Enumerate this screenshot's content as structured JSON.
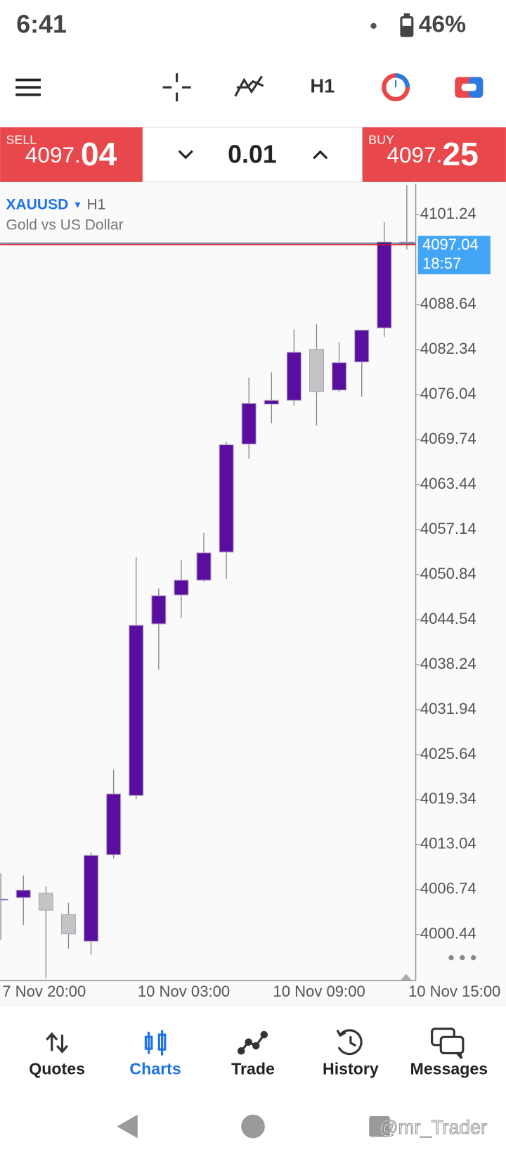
{
  "status_bar": {
    "time": "6:41",
    "battery": "46%"
  },
  "toolbar": {
    "timeframe": "H1"
  },
  "trade_panel": {
    "sell_label": "SELL",
    "sell_price": "4097.",
    "sell_price_pips": "04",
    "lot": "0.01",
    "buy_label": "BUY",
    "buy_price": "4097.",
    "buy_price_pips": "25"
  },
  "chart_data": {
    "type": "candlestick",
    "symbol": "XAUUSD",
    "timeframe": "H1",
    "description": "Gold vs US Dollar",
    "categories": [
      "7 Nov 20:00",
      null,
      null,
      null,
      null,
      null,
      "10 Nov 03:00",
      null,
      null,
      null,
      null,
      null,
      "10 Nov 09:00",
      null,
      null,
      null,
      null,
      null,
      "10 Nov 15:00"
    ],
    "open": [
      4005.42,
      4005.62,
      4006.24,
      4003.24,
      3999.51,
      4011.63,
      4019.92,
      4043.95,
      4047.99,
      4050.06,
      4054.0,
      4069.13,
      4074.72,
      4075.24,
      4082.39,
      4076.69,
      4080.62,
      4085.39,
      4097.41
    ],
    "high": [
      4009.04,
      4008.73,
      4007.18,
      4004.9,
      4011.94,
      4023.54,
      4053.28,
      4048.92,
      4052.86,
      4056.69,
      4069.44,
      4078.45,
      4079.17,
      4085.18,
      4085.91,
      4083.42,
      4085.08,
      4100.2,
      4105.38
    ],
    "low": [
      3999.72,
      4001.79,
      3994.3,
      3998.47,
      3997.64,
      4011.11,
      4019.4,
      4037.53,
      4044.78,
      4049.86,
      4050.27,
      4067.05,
      4072.03,
      4074.51,
      4071.72,
      4076.38,
      4075.76,
      4084.15,
      4096.37
    ],
    "close": [
      4005.42,
      4006.66,
      4003.86,
      4000.55,
      4011.53,
      4020.13,
      4043.74,
      4047.89,
      4050.06,
      4053.9,
      4069.02,
      4074.82,
      4075.24,
      4081.97,
      4076.48,
      4080.52,
      4085.08,
      4097.41,
      4097.04
    ],
    "up_color": "#5a0ea0",
    "down_color": "#c4c4c4",
    "ylim": [
      3994.2,
      4105.6
    ],
    "yticks": [
      4101.24,
      4088.64,
      4082.34,
      4076.04,
      4069.74,
      4063.44,
      4057.14,
      4050.84,
      4044.54,
      4038.24,
      4031.94,
      4025.64,
      4019.34,
      4013.04,
      4006.74,
      4000.44
    ],
    "price_line": 4097.04,
    "countdown": "18:57"
  },
  "nav": {
    "items": [
      "Quotes",
      "Charts",
      "Trade",
      "History",
      "Messages"
    ],
    "active": 1
  },
  "watermark": "@mr_Trader"
}
